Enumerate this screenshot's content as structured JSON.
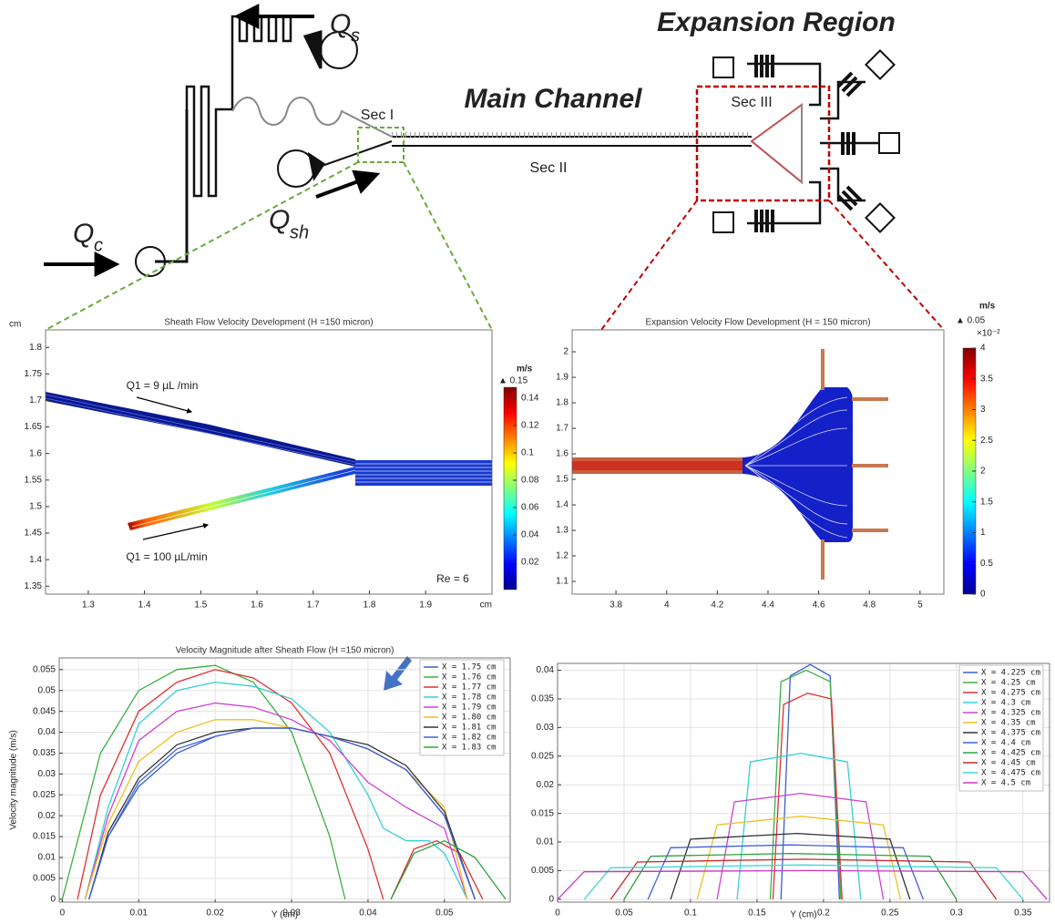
{
  "diagram": {
    "q_s": {
      "main": "Q",
      "sub": "s"
    },
    "q_c": {
      "main": "Q",
      "sub": "c"
    },
    "q_sh": {
      "main": "Q",
      "sub": "sh"
    },
    "main_channel": "Main Channel",
    "expansion_region": "Expansion Region",
    "sec_1": "Sec I",
    "sec_2": "Sec II",
    "sec_3": "Sec III"
  },
  "chart_data": [
    {
      "type": "field",
      "title": "Sheath Flow Velocity Development (H =150 micron)",
      "x_unit": "cm",
      "y_unit": "cm",
      "xlim": [
        1.224,
        2.018
      ],
      "xticks": [
        1.3,
        1.4,
        1.5,
        1.6,
        1.7,
        1.8,
        1.9
      ],
      "ylim": [
        1.335,
        1.833
      ],
      "yticks": [
        1.35,
        1.4,
        1.45,
        1.5,
        1.55,
        1.6,
        1.65,
        1.7,
        1.75,
        1.8
      ],
      "colorbar": {
        "unit": "m/s",
        "max_label": "▲ 0.15",
        "lim": [
          0,
          0.148
        ],
        "ticks": [
          0.02,
          0.04,
          0.06,
          0.08,
          0.1,
          0.12,
          0.14
        ]
      },
      "annotations": [
        "Q1 = 9 µL /min",
        "Q1 = 100 µL/min",
        "Re = 6"
      ]
    },
    {
      "type": "field",
      "title": "Expansion Velocity Flow Development (H = 150 micron)",
      "xlim": [
        3.627,
        5.094
      ],
      "xticks": [
        3.8,
        4,
        4.2,
        4.4,
        4.6,
        4.8,
        5
      ],
      "ylim": [
        1.05,
        2.086
      ],
      "yticks": [
        1.1,
        1.2,
        1.3,
        1.4,
        1.5,
        1.6,
        1.7,
        1.8,
        1.9,
        2
      ],
      "colorbar": {
        "unit": "m/s",
        "max_label": "▲ 0.05",
        "exponent": "×10⁻²",
        "lim": [
          0,
          4
        ],
        "ticks": [
          0,
          0.5,
          1,
          1.5,
          2,
          2.5,
          3,
          3.5,
          4
        ]
      }
    },
    {
      "type": "line",
      "title": "Velocity Magnitude after Sheath Flow (H =150 micron)",
      "xlabel": "Y (cm)",
      "ylabel": "Velocity magnitude (m/s)",
      "grid": true,
      "xlim": [
        -0.0004,
        0.0586
      ],
      "xticks": [
        0,
        0.01,
        0.02,
        0.03,
        0.04,
        0.05
      ],
      "ylim": [
        -0.0007,
        0.0578
      ],
      "yticks": [
        0,
        0.005,
        0.01,
        0.015,
        0.02,
        0.025,
        0.03,
        0.035,
        0.04,
        0.045,
        0.05,
        0.055
      ],
      "series": [
        {
          "name": "X = 1.75 cm",
          "color": "#3a5fcd",
          "x": [
            0.0035,
            0.006,
            0.01,
            0.015,
            0.02,
            0.025,
            0.03,
            0.035,
            0.04,
            0.045,
            0.05,
            0.054
          ],
          "values": [
            0,
            0.015,
            0.027,
            0.035,
            0.039,
            0.041,
            0.041,
            0.039,
            0.036,
            0.031,
            0.02,
            0
          ]
        },
        {
          "name": "X = 1.76 cm",
          "color": "#3cb043",
          "x": [
            0,
            0.005,
            0.01,
            0.015,
            0.02,
            0.025,
            0.03,
            0.035,
            0.037
          ],
          "values": [
            0,
            0.035,
            0.05,
            0.055,
            0.056,
            0.052,
            0.04,
            0.015,
            0
          ]
        },
        {
          "name": "X = 1.77 cm",
          "color": "#e03030",
          "x": [
            0.002,
            0.005,
            0.01,
            0.015,
            0.02,
            0.025,
            0.03,
            0.035,
            0.04,
            0.042,
            0.043,
            0.043,
            0.046,
            0.049,
            0.052,
            0.055
          ],
          "values": [
            0,
            0.025,
            0.045,
            0.052,
            0.055,
            0.053,
            0.047,
            0.035,
            0.012,
            0,
            null,
            0,
            0.012,
            0.014,
            0.011,
            0
          ]
        },
        {
          "name": "X = 1.78 cm",
          "color": "#33d0d6",
          "x": [
            0.003,
            0.006,
            0.01,
            0.015,
            0.02,
            0.025,
            0.03,
            0.035,
            0.04,
            0.042,
            0.045,
            0.048,
            0.05,
            0.053
          ],
          "values": [
            0,
            0.022,
            0.042,
            0.05,
            0.052,
            0.051,
            0.048,
            0.04,
            0.025,
            0.017,
            0.014,
            0.014,
            0.011,
            0
          ]
        },
        {
          "name": "X = 1.79 cm",
          "color": "#d040d0",
          "x": [
            0.003,
            0.006,
            0.01,
            0.015,
            0.02,
            0.025,
            0.03,
            0.035,
            0.04,
            0.045,
            0.05,
            0.053
          ],
          "values": [
            0,
            0.02,
            0.038,
            0.045,
            0.047,
            0.046,
            0.043,
            0.038,
            0.028,
            0.022,
            0.017,
            0
          ]
        },
        {
          "name": "X = 1.80 cm",
          "color": "#f0c020",
          "x": [
            0.003,
            0.006,
            0.01,
            0.015,
            0.02,
            0.025,
            0.03,
            0.035,
            0.04,
            0.045,
            0.05,
            0.053
          ],
          "values": [
            0,
            0.018,
            0.033,
            0.04,
            0.043,
            0.043,
            0.041,
            0.039,
            0.036,
            0.031,
            0.022,
            0
          ]
        },
        {
          "name": "X = 1.81 cm",
          "color": "#333333",
          "x": [
            0.0035,
            0.006,
            0.01,
            0.015,
            0.02,
            0.025,
            0.03,
            0.035,
            0.04,
            0.045,
            0.05,
            0.054
          ],
          "values": [
            0,
            0.016,
            0.029,
            0.037,
            0.04,
            0.041,
            0.041,
            0.039,
            0.037,
            0.032,
            0.021,
            0
          ]
        },
        {
          "name": "X = 1.82 cm",
          "color": "#4060e0",
          "x": [
            0.0035,
            0.006,
            0.01,
            0.015,
            0.02,
            0.025,
            0.03,
            0.035,
            0.04,
            0.045,
            0.05,
            0.054
          ],
          "values": [
            0,
            0.015,
            0.028,
            0.036,
            0.039,
            0.041,
            0.041,
            0.039,
            0.036,
            0.031,
            0.02,
            0
          ]
        },
        {
          "name": "X = 1.83 cm",
          "color": "#2fa040",
          "x": [
            0.043,
            0.046,
            0.05,
            0.054,
            0.058
          ],
          "values": [
            0,
            0.011,
            0.014,
            0.01,
            0
          ]
        }
      ]
    },
    {
      "type": "line",
      "xlabel": "Y (cm)",
      "grid": true,
      "xlim": [
        0,
        0.37
      ],
      "xticks": [
        0,
        0.05,
        0.1,
        0.15,
        0.2,
        0.25,
        0.3,
        0.35
      ],
      "ylim": [
        -0.0005,
        0.0412
      ],
      "yticks": [
        0,
        0.005,
        0.01,
        0.015,
        0.02,
        0.025,
        0.03,
        0.035,
        0.04
      ],
      "series": [
        {
          "name": "X = 4.225 cm",
          "color": "#3a5fcd",
          "x": [
            0.168,
            0.175,
            0.19,
            0.205,
            0.212
          ],
          "values": [
            0,
            0.039,
            0.041,
            0.039,
            0
          ]
        },
        {
          "name": "X = 4.25 cm",
          "color": "#3cb043",
          "x": [
            0.16,
            0.168,
            0.187,
            0.205,
            0.213
          ],
          "values": [
            0,
            0.038,
            0.04,
            0.038,
            0
          ]
        },
        {
          "name": "X = 4.275 cm",
          "color": "#e03030",
          "x": [
            0.162,
            0.17,
            0.188,
            0.206,
            0.214
          ],
          "values": [
            0,
            0.034,
            0.036,
            0.035,
            0
          ]
        },
        {
          "name": "X = 4.3 cm",
          "color": "#33d0d6",
          "x": [
            0.135,
            0.145,
            0.183,
            0.218,
            0.228
          ],
          "values": [
            0,
            0.024,
            0.0255,
            0.024,
            0
          ]
        },
        {
          "name": "X = 4.325 cm",
          "color": "#d040d0",
          "x": [
            0.12,
            0.133,
            0.183,
            0.232,
            0.245
          ],
          "values": [
            0,
            0.017,
            0.0185,
            0.017,
            0
          ]
        },
        {
          "name": "X = 4.35 cm",
          "color": "#f0c020",
          "x": [
            0.105,
            0.12,
            0.183,
            0.245,
            0.258
          ],
          "values": [
            0,
            0.013,
            0.0145,
            0.013,
            0
          ]
        },
        {
          "name": "X = 4.375 cm",
          "color": "#333333",
          "x": [
            0.085,
            0.1,
            0.18,
            0.25,
            0.265
          ],
          "values": [
            0,
            0.0105,
            0.0115,
            0.0105,
            0
          ]
        },
        {
          "name": "X = 4.4 cm",
          "color": "#4060e0",
          "x": [
            0.068,
            0.085,
            0.175,
            0.26,
            0.275
          ],
          "values": [
            0,
            0.009,
            0.0095,
            0.009,
            0
          ]
        },
        {
          "name": "X = 4.425 cm",
          "color": "#2fa040",
          "x": [
            0.05,
            0.07,
            0.175,
            0.28,
            0.3
          ],
          "values": [
            0,
            0.0075,
            0.008,
            0.0075,
            0
          ]
        },
        {
          "name": "X = 4.45 cm",
          "color": "#c82828",
          "x": [
            0.04,
            0.06,
            0.185,
            0.31,
            0.33
          ],
          "values": [
            0,
            0.0065,
            0.007,
            0.0065,
            0
          ]
        },
        {
          "name": "X = 4.475 cm",
          "color": "#40d8d8",
          "x": [
            0.02,
            0.04,
            0.185,
            0.33,
            0.35
          ],
          "values": [
            0,
            0.0055,
            0.006,
            0.0055,
            0
          ]
        },
        {
          "name": "X = 4.5 cm",
          "color": "#c838c8",
          "x": [
            0,
            0.02,
            0.19,
            0.35,
            0.368
          ],
          "values": [
            0,
            0.0048,
            0.005,
            0.0048,
            0
          ]
        }
      ]
    }
  ]
}
